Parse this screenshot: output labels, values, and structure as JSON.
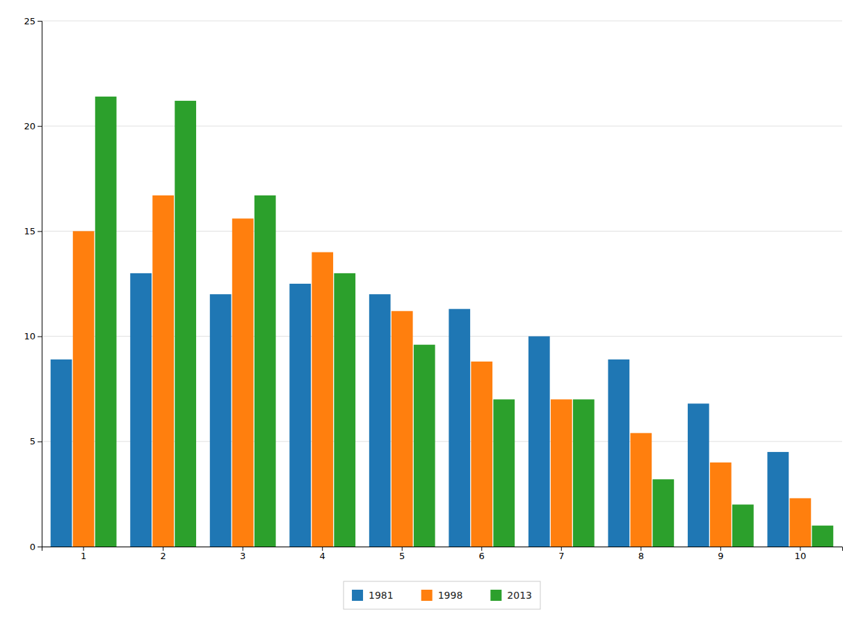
{
  "chart_data": {
    "type": "bar",
    "categories": [
      "1",
      "2",
      "3",
      "4",
      "5",
      "6",
      "7",
      "8",
      "9",
      "10"
    ],
    "series": [
      {
        "name": "1981",
        "values": [
          8.9,
          13.0,
          12.0,
          12.5,
          12.0,
          11.3,
          10.0,
          8.9,
          6.8,
          4.5
        ]
      },
      {
        "name": "1998",
        "values": [
          15.0,
          16.7,
          15.6,
          14.0,
          11.2,
          8.8,
          7.0,
          5.4,
          4.0,
          2.3
        ]
      },
      {
        "name": "2013",
        "values": [
          21.4,
          21.2,
          16.7,
          13.0,
          9.6,
          7.0,
          7.0,
          3.2,
          2.0,
          1.0
        ]
      }
    ],
    "ylim": [
      0,
      25
    ],
    "yticks": [
      0,
      5,
      10,
      15,
      20,
      25
    ],
    "grid": true,
    "legend": "bottom"
  }
}
